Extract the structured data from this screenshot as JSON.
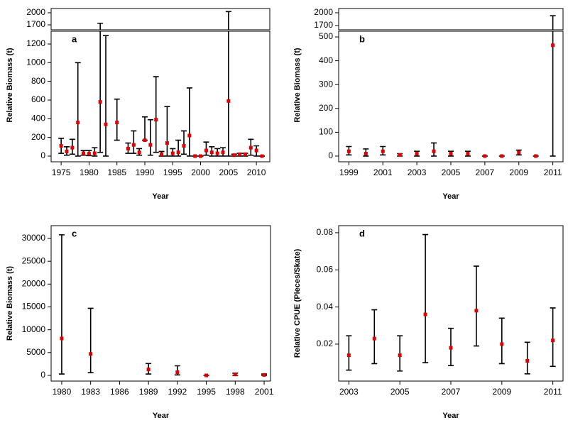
{
  "chart_data": [
    {
      "type": "errorbar",
      "label": "a",
      "xlabel": "Year",
      "ylabel": "Relative Biomass (t)",
      "color": "#e00000",
      "bar_color": "#000000",
      "x": [
        1975,
        1976,
        1977,
        1978,
        1979,
        1980,
        1981,
        1982,
        1983,
        1985,
        1987,
        1988,
        1989,
        1990,
        1991,
        1992,
        1993,
        1994,
        1995,
        1996,
        1997,
        1998,
        1999,
        2000,
        2001,
        2002,
        2003,
        2004,
        2005,
        2006,
        2007,
        2008,
        2009,
        2010,
        2011
      ],
      "values": [
        110,
        50,
        90,
        360,
        30,
        25,
        30,
        580,
        340,
        360,
        80,
        120,
        40,
        170,
        120,
        390,
        20,
        140,
        30,
        40,
        110,
        220,
        0,
        0,
        60,
        40,
        30,
        40,
        590,
        10,
        20,
        20,
        90,
        60,
        0
      ],
      "lower": [
        30,
        10,
        20,
        0,
        10,
        5,
        0,
        40,
        0,
        170,
        30,
        30,
        10,
        170,
        10,
        40,
        0,
        0,
        0,
        0,
        20,
        0,
        0,
        0,
        10,
        0,
        0,
        0,
        0,
        0,
        0,
        0,
        10,
        0,
        0
      ],
      "upper": [
        190,
        100,
        180,
        1000,
        60,
        60,
        90,
        1740,
        1290,
        610,
        140,
        270,
        80,
        420,
        390,
        850,
        50,
        530,
        80,
        170,
        270,
        730,
        0,
        0,
        150,
        100,
        80,
        90,
        2030,
        20,
        30,
        30,
        180,
        110,
        0
      ],
      "xlim": [
        1973.2,
        2012.4
      ],
      "xticks": [
        1975,
        1980,
        1985,
        1990,
        1995,
        2000,
        2005,
        2010
      ],
      "ylim": [
        -61,
        1337
      ],
      "yticks": [
        0,
        200,
        400,
        600,
        800,
        1000,
        1200
      ],
      "break_ylim": [
        1577,
        2106
      ],
      "break_yticks": [
        1700,
        2000
      ]
    },
    {
      "type": "errorbar",
      "label": "b",
      "xlabel": "Year",
      "ylabel": "Relative Biomass (t)",
      "color": "#e00000",
      "bar_color": "#000000",
      "x": [
        1999,
        2000,
        2001,
        2002,
        2003,
        2004,
        2005,
        2006,
        2007,
        2008,
        2009,
        2010,
        2011
      ],
      "values": [
        20,
        10,
        20,
        5,
        10,
        20,
        10,
        10,
        0,
        0,
        15,
        0,
        465
      ],
      "lower": [
        5,
        0,
        5,
        0,
        0,
        0,
        0,
        0,
        0,
        0,
        5,
        0,
        0
      ],
      "upper": [
        40,
        30,
        40,
        10,
        20,
        55,
        20,
        20,
        0,
        0,
        25,
        0,
        1930
      ],
      "xlim": [
        1998.4,
        2011.6
      ],
      "xticks": [
        1999,
        2001,
        2003,
        2005,
        2007,
        2009,
        2011
      ],
      "ylim": [
        -24,
        524
      ],
      "yticks": [
        0,
        100,
        200,
        300,
        400,
        500
      ],
      "break_ylim": [
        1600,
        2100
      ],
      "break_yticks": [
        1700,
        2000
      ]
    },
    {
      "type": "errorbar",
      "label": "c",
      "xlabel": "Year",
      "ylabel": "Relative Biomass (t)",
      "color": "#e00000",
      "bar_color": "#000000",
      "x": [
        1980,
        1983,
        1989,
        1992,
        1995,
        1998,
        2001
      ],
      "values": [
        8100,
        4700,
        1300,
        700,
        0,
        200,
        100
      ],
      "lower": [
        300,
        600,
        300,
        100,
        0,
        0,
        0
      ],
      "upper": [
        30800,
        14700,
        2600,
        2100,
        0,
        500,
        300
      ],
      "xlim": [
        1978.9,
        2001.66
      ],
      "xticks": [
        1980,
        1983,
        1986,
        1989,
        1992,
        1995,
        1998,
        2001
      ],
      "ylim": [
        -1244,
        32800
      ],
      "yticks": [
        0,
        5000,
        10000,
        15000,
        20000,
        25000,
        30000
      ]
    },
    {
      "type": "errorbar",
      "label": "d",
      "xlabel": "Year",
      "ylabel": "Relative CPUE (Pieces/Skate)",
      "color": "#e00000",
      "bar_color": "#000000",
      "x": [
        2003,
        2004,
        2005,
        2006,
        2007,
        2008,
        2009,
        2010,
        2011
      ],
      "values": [
        0.014,
        0.023,
        0.014,
        0.036,
        0.018,
        0.038,
        0.02,
        0.011,
        0.022
      ],
      "lower": [
        0.006,
        0.0095,
        0.0055,
        0.01,
        0.0085,
        0.019,
        0.0095,
        0.004,
        0.008
      ],
      "upper": [
        0.0245,
        0.0385,
        0.0245,
        0.079,
        0.0285,
        0.062,
        0.034,
        0.021,
        0.0395
      ],
      "xlim": [
        2002.6,
        2011.4
      ],
      "xticks": [
        2003,
        2005,
        2007,
        2009,
        2011
      ],
      "ylim": [
        0.0001,
        0.0838
      ],
      "yticks": [
        0.02,
        0.04,
        0.06,
        0.08
      ]
    }
  ]
}
